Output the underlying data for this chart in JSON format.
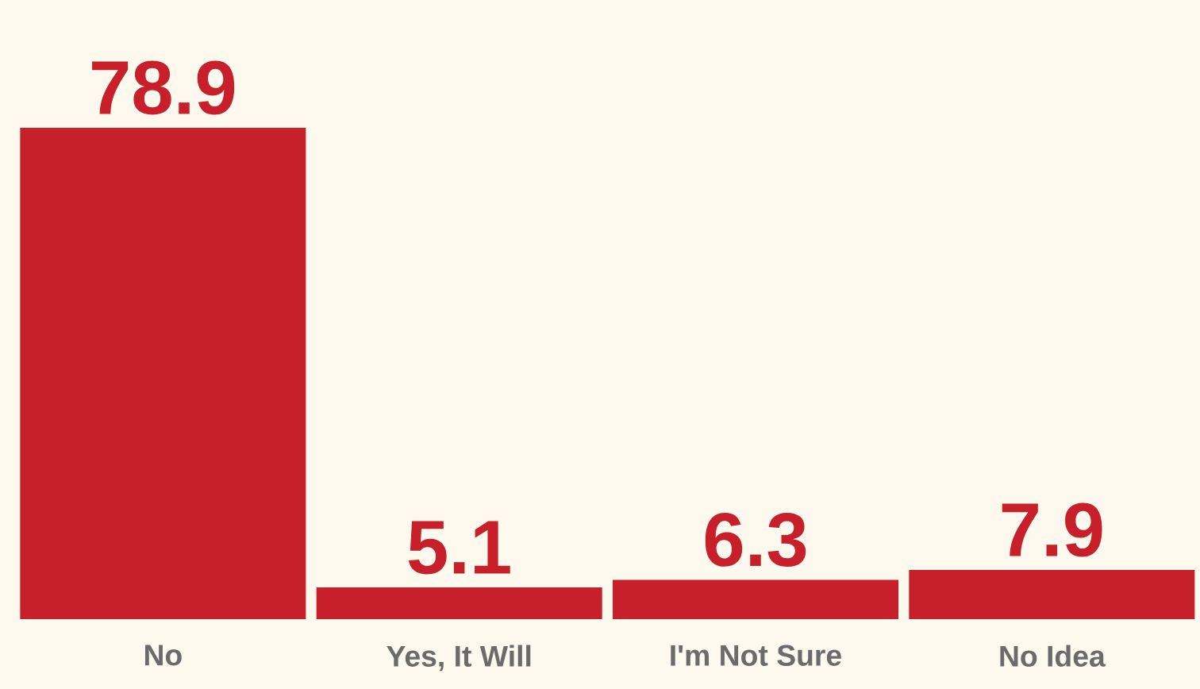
{
  "chart_data": {
    "type": "bar",
    "categories": [
      "No",
      "Yes, It Will",
      "I'm Not Sure",
      "No Idea"
    ],
    "values": [
      78.9,
      5.1,
      6.3,
      7.9
    ],
    "color": "#c8202a",
    "data_labels": true
  }
}
